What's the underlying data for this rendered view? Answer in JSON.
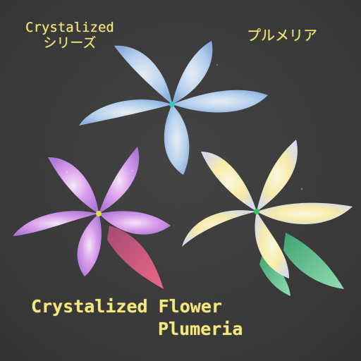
{
  "labels": {
    "series_line1": "Crystalized",
    "series_line2": "シリーズ",
    "japanese_name": "プルメリア",
    "title": "Crystalized Flower",
    "subtitle": "Plumeria"
  },
  "colors": {
    "background": "#3b3b3b",
    "text": "#f3e87f",
    "blue_flower": "#b8d6f5",
    "pink_flower": "#d58af0",
    "yellow_flower": "#fff3b0",
    "leaf_pink": "#e85a8a",
    "leaf_green": "#6fdc9a"
  },
  "flowers": [
    {
      "name": "blue-crystal-plumeria"
    },
    {
      "name": "pink-crystal-plumeria"
    },
    {
      "name": "yellow-crystal-plumeria"
    }
  ]
}
